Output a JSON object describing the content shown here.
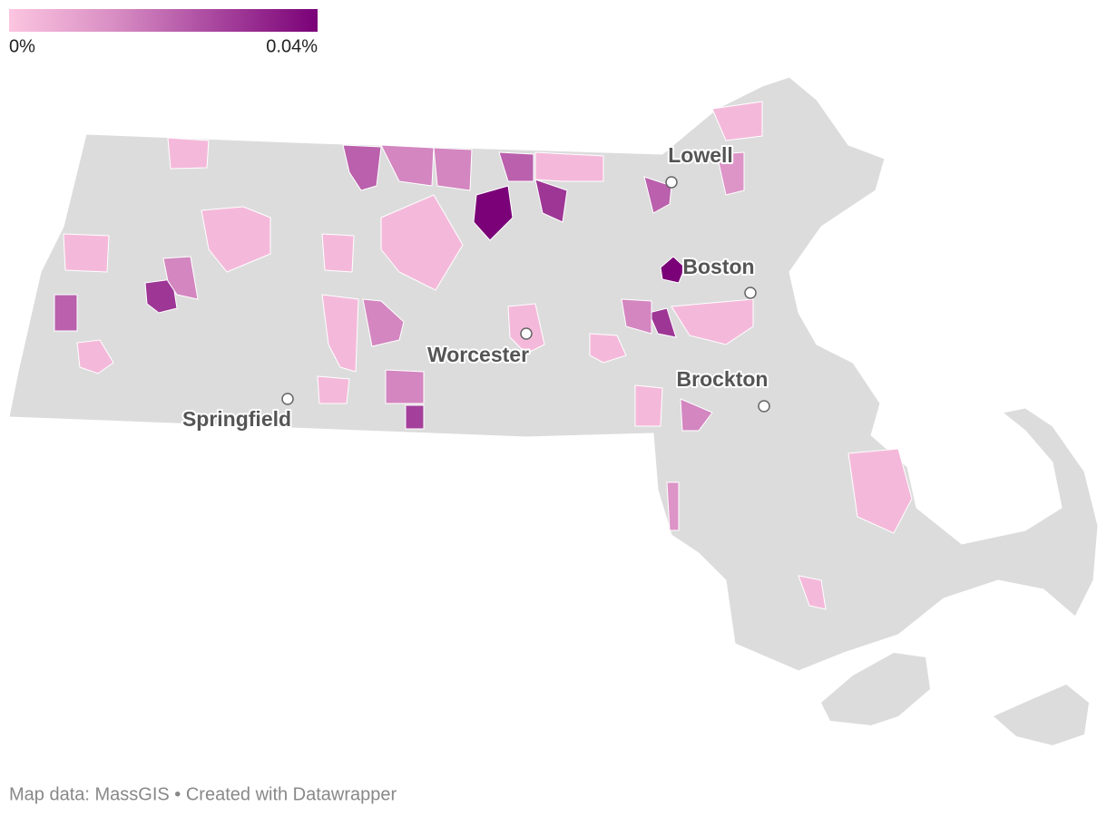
{
  "legend": {
    "colors": [
      "#fcc5e0",
      "#d98fc4",
      "#a9479f",
      "#7a0177"
    ],
    "ticks": [
      {
        "value": 0,
        "label": "0%"
      },
      {
        "value": 0.04,
        "label": "0.04%"
      }
    ]
  },
  "cities": [
    "Lowell",
    "Boston",
    "Worcester",
    "Brockton",
    "Springfield"
  ],
  "towns": [
    0.04,
    0.04,
    0.03,
    0.03,
    0.03,
    0.028,
    0.022,
    0.022,
    0.022,
    0.022,
    0.015,
    0.015,
    0.015,
    0.015,
    0.015,
    0.015,
    0.015,
    0.012,
    0.012,
    0.003,
    0.003,
    0.003,
    0.003,
    0.003,
    0.003,
    0.003,
    0.003,
    0.003,
    0.003,
    0.003,
    0.003,
    0.003,
    0.003,
    0.003,
    0.003
  ],
  "footer": "Map data: MassGIS • Created with Datawrapper"
}
